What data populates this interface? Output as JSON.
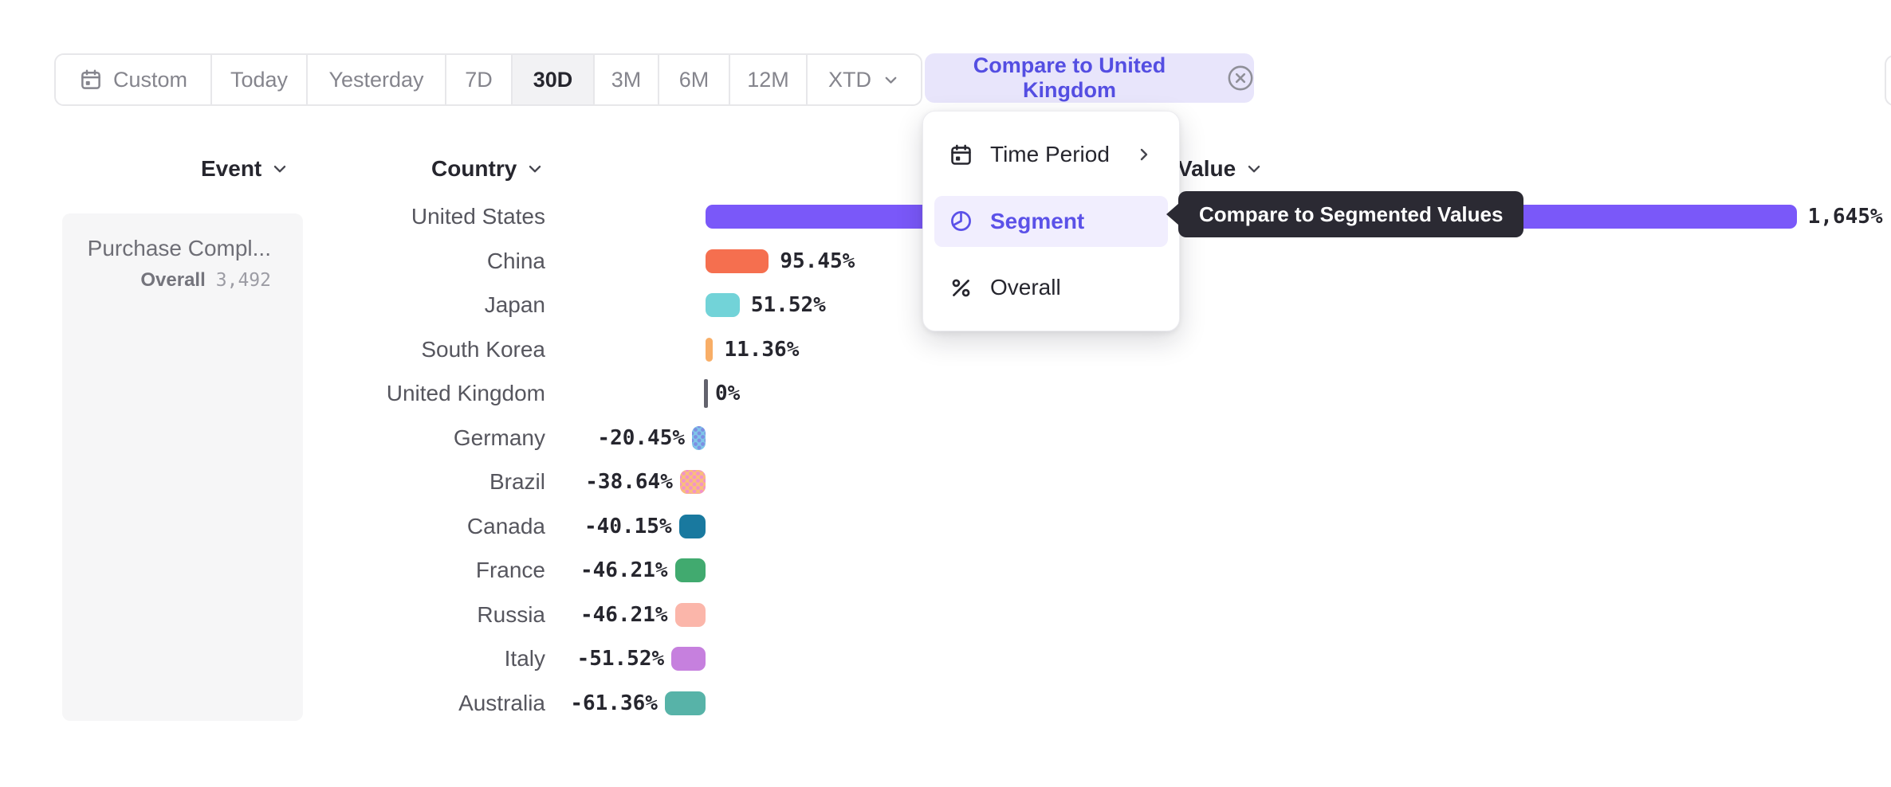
{
  "toolbar": {
    "date_ranges": [
      {
        "label": "Custom",
        "icon": "calendar",
        "selected": false
      },
      {
        "label": "Today",
        "selected": false
      },
      {
        "label": "Yesterday",
        "selected": false
      },
      {
        "label": "7D",
        "selected": false
      },
      {
        "label": "30D",
        "selected": true
      },
      {
        "label": "3M",
        "selected": false
      },
      {
        "label": "6M",
        "selected": false
      },
      {
        "label": "12M",
        "selected": false
      },
      {
        "label": "XTD",
        "icon": "chevron-down",
        "selected": false
      }
    ],
    "compare_button": {
      "label": "Compare to United Kingdom",
      "icon": "circle-x"
    }
  },
  "columns": {
    "event_label": "Event",
    "country_label": "Country",
    "value_label": "Value"
  },
  "event_panel": {
    "title": "Purchase Compl...",
    "overall_label": "Overall",
    "overall_value": "3,492"
  },
  "chart_data": {
    "type": "bar",
    "orientation": "horizontal",
    "group_by": "Country",
    "value_suffix": "%",
    "baseline": 0,
    "baseline_label": "0%",
    "xlim": [
      -61.36,
      1645
    ],
    "grid": false,
    "legend": false,
    "categories": [
      "United States",
      "China",
      "Japan",
      "South Korea",
      "United Kingdom",
      "Germany",
      "Brazil",
      "Canada",
      "France",
      "Russia",
      "Italy",
      "Australia"
    ],
    "values": [
      1645,
      95.45,
      51.52,
      11.36,
      0,
      -20.45,
      -38.64,
      -40.15,
      -46.21,
      -46.21,
      -51.52,
      -61.36
    ],
    "labels": [
      "1,645%",
      "95.45%",
      "51.52%",
      "11.36%",
      "0%",
      "-20.45%",
      "-38.64%",
      "-40.15%",
      "-46.21%",
      "-46.21%",
      "-51.52%",
      "-61.36%"
    ],
    "colors": [
      "#7a58f9",
      "#f56f4f",
      "#72d3d8",
      "#f8ae67",
      "#63636d",
      "#7fc5e9",
      "#f9be7b",
      "#19799f",
      "#41aa6f",
      "#fbb6aa",
      "#c680de",
      "#57b3a8"
    ],
    "dotted": [
      false,
      false,
      false,
      false,
      false,
      true,
      true,
      false,
      false,
      false,
      false,
      false
    ],
    "dot_colors": [
      null,
      null,
      null,
      null,
      null,
      "#7d8fe2",
      null,
      null,
      null,
      null,
      null,
      null
    ]
  },
  "menu": {
    "items": [
      {
        "label": "Time Period",
        "icon": "calendar",
        "has_submenu": true,
        "selected": false
      },
      {
        "label": "Segment",
        "icon": "segment",
        "has_submenu": false,
        "selected": true
      },
      {
        "label": "Overall",
        "icon": "percent",
        "has_submenu": false,
        "selected": false
      }
    ]
  },
  "tooltip": {
    "text": "Compare to Segmented Values"
  },
  "colors": {
    "accent": "#5b51e8",
    "compare_button_bg": "#e8e5fb",
    "selected_range_bg": "#f2f2f4",
    "menu_highlight_bg": "#f1eefe",
    "tooltip_bg": "#2b2a33",
    "panel_bg": "#f6f6f7",
    "brazil_dot_color": "#f394c6"
  }
}
